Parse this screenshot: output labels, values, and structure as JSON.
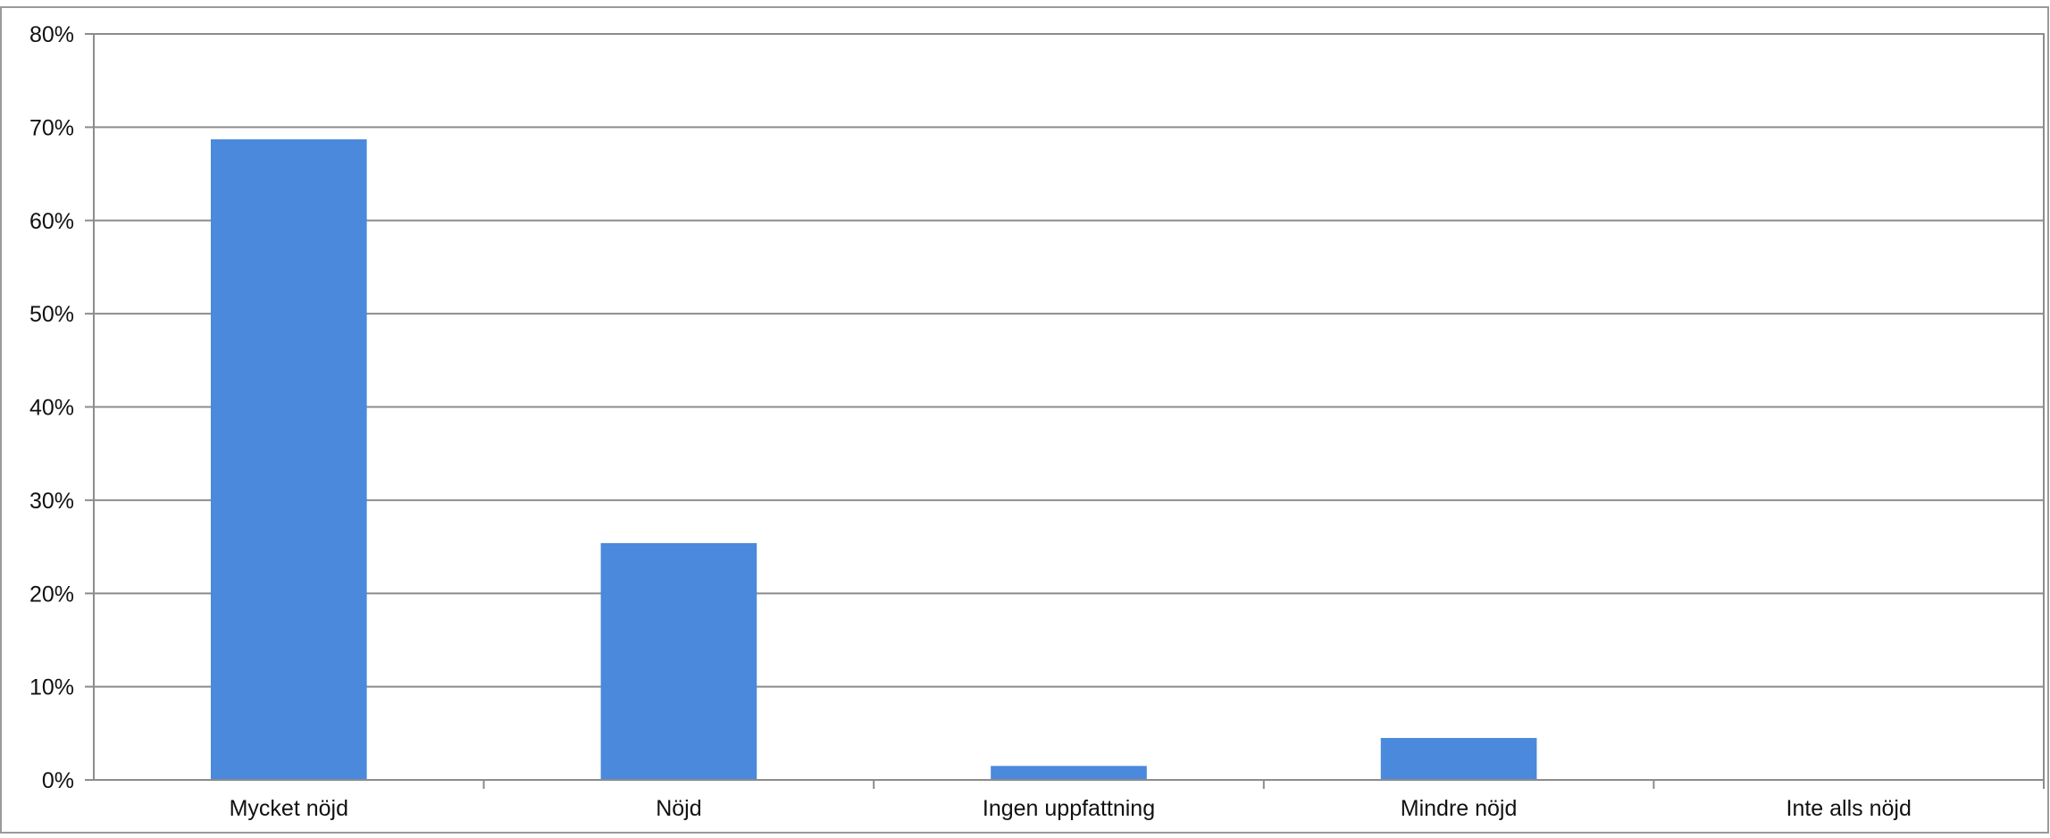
{
  "chart_data": {
    "type": "bar",
    "title": "",
    "xlabel": "",
    "ylabel": "",
    "categories": [
      "Mycket nöjd",
      "Nöjd",
      "Ingen uppfattning",
      "Mindre nöjd",
      "Inte alls nöjd"
    ],
    "values": [
      68.7,
      25.4,
      1.5,
      4.5,
      0
    ],
    "ylim": [
      0,
      80
    ],
    "yticks": [
      0,
      10,
      20,
      30,
      40,
      50,
      60,
      70,
      80
    ],
    "ytick_labels": [
      "0%",
      "10%",
      "20%",
      "30%",
      "40%",
      "50%",
      "60%",
      "70%",
      "80%"
    ],
    "grid": true,
    "legend": "none",
    "colors": {
      "bar": "#4a89dc",
      "grid": "#8c8c8c",
      "frame": "#8c8c8c"
    }
  }
}
